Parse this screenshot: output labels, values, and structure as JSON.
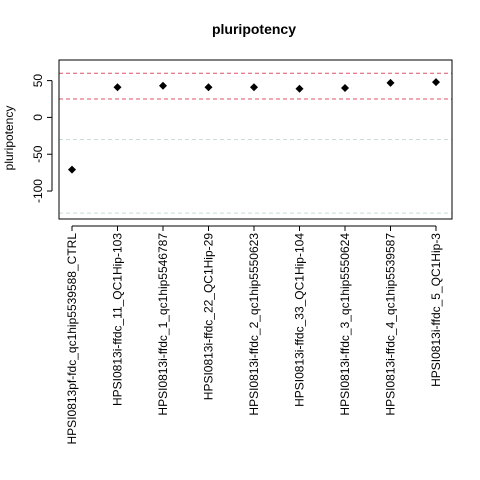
{
  "chart_data": {
    "type": "scatter",
    "title": "pluripotency",
    "xlabel": "",
    "ylabel": "pluripotency",
    "categories": [
      "HPSI0813pf-fdc_qc1hip5539588_CTRL",
      "HPSI0813i-ffdc_11_QC1Hip-103",
      "HPSI0813i-ffdc_1_qc1hip5546787",
      "HPSI0813i-ffdc_22_QC1Hip-29",
      "HPSI0813i-ffdc_2_qc1hip5550623",
      "HPSI0813i-ffdc_33_QC1Hip-104",
      "HPSI0813i-ffdc_3_qc1hip5550624",
      "HPSI0813i-ffdc_4_qc1hip5539587",
      "HPSI0813i-ffdc_5_QC1Hip-3"
    ],
    "values": [
      -71,
      41,
      43,
      41,
      41,
      39,
      40,
      47,
      48
    ],
    "ylim": [
      -138,
      78
    ],
    "yticks": [
      -100,
      -50,
      0,
      50
    ],
    "reference_lines": [
      {
        "y": 60,
        "color": "#DF536B",
        "style": "dashed"
      },
      {
        "y": 25,
        "color": "#DF536B",
        "style": "dashed"
      },
      {
        "y": -30,
        "color": "#C8DDD3",
        "style": "dashed"
      },
      {
        "y": -130,
        "color": "#C8DDD3",
        "style": "dashed"
      }
    ],
    "marker": "diamond",
    "marker_color": "#000000",
    "grid": false,
    "legend": "none"
  }
}
